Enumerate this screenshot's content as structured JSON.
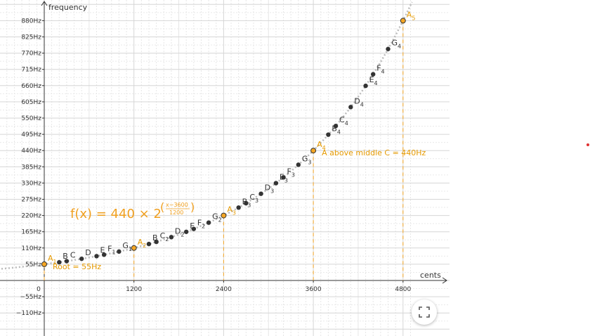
{
  "chart_data": {
    "type": "scatter",
    "title": "",
    "xlabel": "cents",
    "ylabel": "frequency",
    "xlim": [
      -1000,
      4860
    ],
    "ylim": [
      -130,
      900
    ],
    "x_ticks": [
      0,
      1200,
      2400,
      3600,
      4800
    ],
    "x_tick_labels": [
      "0",
      "1200",
      "2400",
      "3600",
      "4800"
    ],
    "y_ticks": [
      -110,
      -55,
      55,
      110,
      165,
      220,
      275,
      330,
      385,
      440,
      495,
      550,
      605,
      660,
      715,
      770,
      825,
      880
    ],
    "y_tick_labels": [
      "−110Hz",
      "−55Hz",
      "55Hz",
      "110Hz",
      "165Hz",
      "220Hz",
      "275Hz",
      "330Hz",
      "385Hz",
      "440Hz",
      "495Hz",
      "550Hz",
      "605Hz",
      "660Hz",
      "715Hz",
      "770Hz",
      "825Hz",
      "880Hz"
    ],
    "grid": true,
    "function_label": {
      "text": "f(x) = 440 × 2",
      "exponent_numerator": "x−3600",
      "exponent_denominator": "1200"
    },
    "curve": {
      "function": "440*2^((x-3600)/1200)",
      "style": "dotted",
      "color": "#bbbbbb"
    },
    "annotations": [
      {
        "text": "Root = 55Hz",
        "x": 0,
        "y": 55
      },
      {
        "text": "A above middle C = 440Hz",
        "x": 3600,
        "y": 440
      }
    ],
    "highlight_color": "#f5a623",
    "point_color": "#333333",
    "points": [
      {
        "x": 0,
        "y": 55,
        "label": "A",
        "sub": "1",
        "highlight": true
      },
      {
        "x": 200,
        "y": 61.7,
        "label": "B",
        "sub": "",
        "highlight": false
      },
      {
        "x": 300,
        "y": 65.4,
        "label": "C",
        "sub": "",
        "highlight": false
      },
      {
        "x": 500,
        "y": 73.4,
        "label": "D",
        "sub": "",
        "highlight": false
      },
      {
        "x": 700,
        "y": 82.4,
        "label": "E",
        "sub": "",
        "highlight": false
      },
      {
        "x": 800,
        "y": 87.3,
        "label": "F",
        "sub": "1",
        "highlight": false
      },
      {
        "x": 1000,
        "y": 98.0,
        "label": "G",
        "sub": "1",
        "highlight": false
      },
      {
        "x": 1200,
        "y": 110,
        "label": "A",
        "sub": "2",
        "highlight": true
      },
      {
        "x": 1400,
        "y": 123.5,
        "label": "B",
        "sub": "",
        "highlight": false
      },
      {
        "x": 1500,
        "y": 130.8,
        "label": "C",
        "sub": "2",
        "highlight": false
      },
      {
        "x": 1700,
        "y": 146.8,
        "label": "D",
        "sub": "2",
        "highlight": false
      },
      {
        "x": 1900,
        "y": 164.8,
        "label": "E",
        "sub": "",
        "highlight": false
      },
      {
        "x": 2000,
        "y": 174.6,
        "label": "F",
        "sub": "2",
        "highlight": false
      },
      {
        "x": 2200,
        "y": 196.0,
        "label": "G",
        "sub": "2",
        "highlight": false
      },
      {
        "x": 2400,
        "y": 220,
        "label": "A",
        "sub": "3",
        "highlight": true
      },
      {
        "x": 2600,
        "y": 246.9,
        "label": "B",
        "sub": "3",
        "highlight": false
      },
      {
        "x": 2700,
        "y": 261.6,
        "label": "C",
        "sub": "3",
        "highlight": false
      },
      {
        "x": 2900,
        "y": 293.7,
        "label": "D",
        "sub": "3",
        "highlight": false
      },
      {
        "x": 3100,
        "y": 329.6,
        "label": "E",
        "sub": "3",
        "highlight": false
      },
      {
        "x": 3200,
        "y": 349.2,
        "label": "F",
        "sub": "3",
        "highlight": false
      },
      {
        "x": 3400,
        "y": 392.0,
        "label": "G",
        "sub": "3",
        "highlight": false
      },
      {
        "x": 3600,
        "y": 440,
        "label": "A",
        "sub": "4",
        "highlight": true
      },
      {
        "x": 3800,
        "y": 493.9,
        "label": "B",
        "sub": "4",
        "highlight": false
      },
      {
        "x": 3900,
        "y": 523.3,
        "label": "C",
        "sub": "4",
        "highlight": false
      },
      {
        "x": 4100,
        "y": 587.3,
        "label": "D",
        "sub": "4",
        "highlight": false
      },
      {
        "x": 4300,
        "y": 659.3,
        "label": "E",
        "sub": "4",
        "highlight": false
      },
      {
        "x": 4400,
        "y": 698.5,
        "label": "F",
        "sub": "4",
        "highlight": false
      },
      {
        "x": 4600,
        "y": 784.0,
        "label": "G",
        "sub": "4",
        "highlight": false
      },
      {
        "x": 4800,
        "y": 880,
        "label": "A",
        "sub": "5",
        "highlight": true
      }
    ]
  },
  "controls": {
    "fullscreen_icon": "fullscreen-icon",
    "marker_color": "#e03030"
  }
}
